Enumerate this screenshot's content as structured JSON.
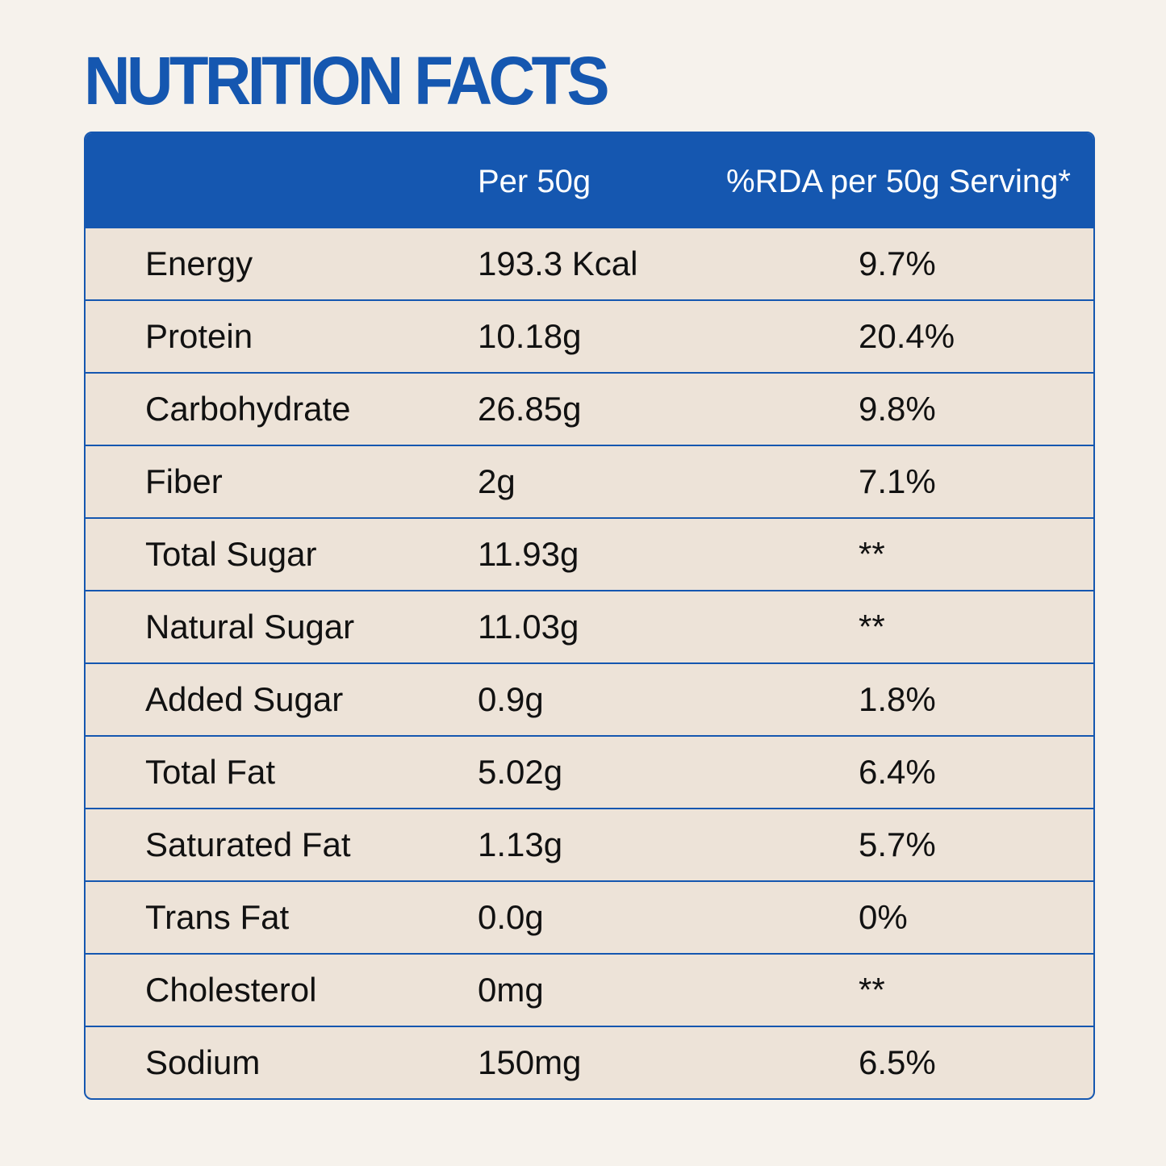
{
  "header": {
    "title": "NUTRITION FACTS"
  },
  "table": {
    "columns": [
      "Per 50g",
      "%RDA per 50g Serving*"
    ],
    "rows": [
      [
        "Energy",
        "193.3 Kcal",
        "9.7%"
      ],
      [
        "Protein",
        "10.18g",
        "20.4%"
      ],
      [
        "Carbohydrate",
        "26.85g",
        "9.8%"
      ],
      [
        "Fiber",
        "2g",
        "7.1%"
      ],
      [
        "Total Sugar",
        "11.93g",
        "**"
      ],
      [
        "Natural Sugar",
        "11.03g",
        "**"
      ],
      [
        "Added Sugar",
        "0.9g",
        "1.8%"
      ],
      [
        "Total Fat",
        "5.02g",
        "6.4%"
      ],
      [
        "Saturated Fat",
        "1.13g",
        "5.7%"
      ],
      [
        "Trans Fat",
        "0.0g",
        "0%"
      ],
      [
        "Cholesterol",
        "0mg",
        "**"
      ],
      [
        "Sodium",
        "150mg",
        "6.5%"
      ]
    ]
  }
}
